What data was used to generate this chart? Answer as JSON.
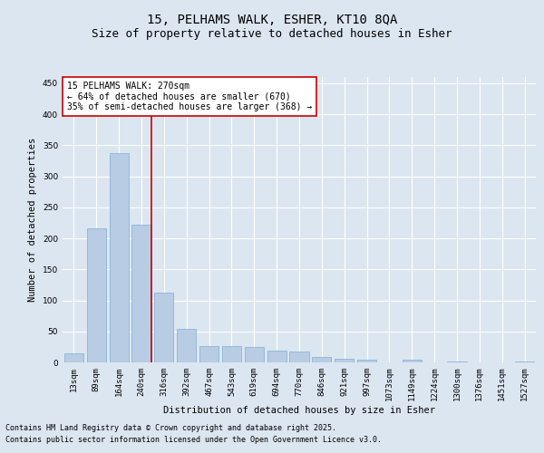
{
  "title_line1": "15, PELHAMS WALK, ESHER, KT10 8QA",
  "title_line2": "Size of property relative to detached houses in Esher",
  "categories": [
    "13sqm",
    "89sqm",
    "164sqm",
    "240sqm",
    "316sqm",
    "392sqm",
    "467sqm",
    "543sqm",
    "619sqm",
    "694sqm",
    "770sqm",
    "846sqm",
    "921sqm",
    "997sqm",
    "1073sqm",
    "1149sqm",
    "1224sqm",
    "1300sqm",
    "1376sqm",
    "1451sqm",
    "1527sqm"
  ],
  "values": [
    15,
    216,
    338,
    222,
    112,
    54,
    27,
    26,
    25,
    19,
    17,
    9,
    6,
    5,
    0,
    4,
    0,
    1,
    0,
    0,
    2
  ],
  "bar_color": "#b8cce4",
  "bar_edge_color": "#7bafd4",
  "vline_x_idx": 3,
  "vline_color": "#cc0000",
  "annotation_text": "15 PELHAMS WALK: 270sqm\n← 64% of detached houses are smaller (670)\n35% of semi-detached houses are larger (368) →",
  "annotation_box_color": "#ffffff",
  "annotation_box_edge": "#cc0000",
  "ylabel": "Number of detached properties",
  "xlabel": "Distribution of detached houses by size in Esher",
  "ylim": [
    0,
    460
  ],
  "yticks": [
    0,
    50,
    100,
    150,
    200,
    250,
    300,
    350,
    400,
    450
  ],
  "bg_color": "#dce6f1",
  "plot_bg_color": "#dce6f1",
  "footer_line1": "Contains HM Land Registry data © Crown copyright and database right 2025.",
  "footer_line2": "Contains public sector information licensed under the Open Government Licence v3.0.",
  "grid_color": "#ffffff",
  "title_fontsize": 10,
  "subtitle_fontsize": 9,
  "axis_label_fontsize": 7.5,
  "tick_fontsize": 6.5,
  "annotation_fontsize": 7,
  "footer_fontsize": 6
}
